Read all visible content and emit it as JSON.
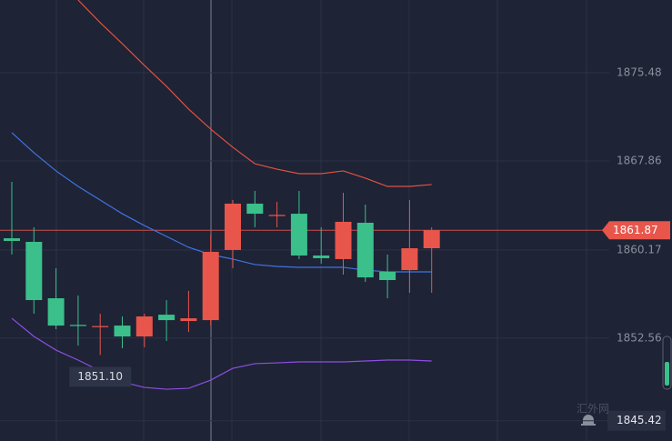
{
  "chart_data": {
    "type": "candlestick",
    "open": [
      1861.18,
      1860.87,
      1856.0,
      1853.7,
      1853.5,
      1853.64,
      1852.7,
      1854.58,
      1854.03,
      1854.11,
      1860.17,
      1864.17,
      1863.1,
      1863.3,
      1859.69,
      1859.38,
      1862.52,
      1858.28,
      1858.43,
      1860.32
    ],
    "high": [
      1866.05,
      1862.13,
      1858.59,
      1856.24,
      1854.66,
      1854.43,
      1854.66,
      1855.84,
      1856.63,
      1861.5,
      1864.48,
      1865.27,
      1864.33,
      1865.27,
      1862.13,
      1865.11,
      1864.09,
      1859.77,
      1864.48,
      1862.13
    ],
    "low": [
      1859.77,
      1854.66,
      1853.33,
      1851.91,
      1851.1,
      1851.68,
      1851.76,
      1852.31,
      1853.09,
      1853.64,
      1858.59,
      1862.13,
      1862.13,
      1859.38,
      1858.99,
      1858.04,
      1857.41,
      1856.0,
      1856.47,
      1856.47
    ],
    "close": [
      1860.95,
      1855.84,
      1853.64,
      1853.6,
      1853.6,
      1852.7,
      1854.43,
      1854.11,
      1854.27,
      1860.01,
      1864.17,
      1863.3,
      1863.2,
      1859.69,
      1859.46,
      1862.6,
      1857.8,
      1857.57,
      1860.32,
      1861.87
    ],
    "up_color": "#e8554b",
    "down_color": "#3bbf8b",
    "bands": [
      {
        "color": "#e0523f",
        "values": [
          null,
          null,
          null,
          1881.76,
          1879.8,
          1877.99,
          1876.11,
          1874.3,
          1872.34,
          1870.61,
          1869.04,
          1867.62,
          1867.15,
          1866.76,
          1866.76,
          1867.0,
          1866.37,
          1865.66,
          1865.66,
          1865.82
        ]
      },
      {
        "color": "#3f74e0",
        "values": [
          1870.3,
          1868.57,
          1867.0,
          1865.66,
          1864.48,
          1863.3,
          1862.28,
          1861.34,
          1860.4,
          1859.77,
          1859.38,
          1858.91,
          1858.75,
          1858.67,
          1858.67,
          1858.67,
          1858.43,
          1858.28,
          1858.28,
          1858.28
        ]
      },
      {
        "color": "#8e4fe0",
        "values": [
          1854.27,
          1852.7,
          1851.52,
          1850.66,
          1849.72,
          1848.77,
          1848.3,
          1848.14,
          1848.22,
          1848.93,
          1849.95,
          1850.35,
          1850.42,
          1850.5,
          1850.5,
          1850.5,
          1850.58,
          1850.66,
          1850.66,
          1850.58
        ]
      }
    ],
    "ylim": [
      1843.67,
      1881.76
    ],
    "yticks": [
      1875.48,
      1867.86,
      1860.17,
      1852.56,
      1845.42
    ],
    "grid": true,
    "current_price": 1861.87,
    "low_marker": {
      "value": 1851.1,
      "label": "1851.10"
    },
    "watermark": "汇外网"
  }
}
